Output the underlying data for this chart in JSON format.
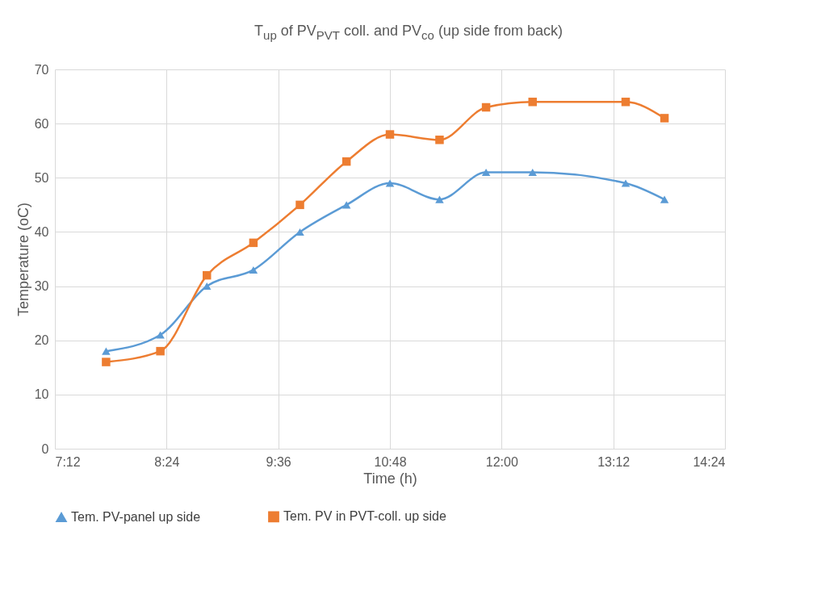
{
  "chart_data": {
    "type": "line",
    "title": "T$_{up}$ of PV$_{PVT}$ coll. and PV$_{co}$ (up side from back)",
    "xlabel": "Time (h)",
    "ylabel": "Temperature (oC)",
    "x": [
      7.75,
      8.333,
      8.833,
      9.333,
      9.833,
      10.333,
      10.8,
      11.333,
      11.833,
      12.333,
      13.333,
      13.75
    ],
    "series": [
      {
        "name": "Tem. PV-panel up side",
        "color": "#5b9bd5",
        "marker": "triangle",
        "values": [
          18,
          21,
          30,
          33,
          40,
          45,
          49,
          46,
          51,
          51,
          49,
          46
        ]
      },
      {
        "name": "Tem. PV in PVT-coll. up side",
        "color": "#ed7d31",
        "marker": "square",
        "values": [
          16,
          18,
          32,
          38,
          45,
          53,
          58,
          57,
          63,
          64,
          64,
          61
        ]
      }
    ],
    "xlim": [
      7.2,
      14.4
    ],
    "xticks": [
      {
        "value": 7.2,
        "label": "7:12"
      },
      {
        "value": 8.4,
        "label": "8:24"
      },
      {
        "value": 9.6,
        "label": "9:36"
      },
      {
        "value": 10.8,
        "label": "10:48"
      },
      {
        "value": 12,
        "label": "12:00"
      },
      {
        "value": 13.2,
        "label": "13:12"
      },
      {
        "value": 14.4,
        "label": "14:24"
      }
    ],
    "ylim": [
      0,
      70
    ],
    "yticks": [
      0,
      10,
      20,
      30,
      40,
      50,
      60,
      70
    ],
    "grid": true,
    "legend": "bottom"
  }
}
